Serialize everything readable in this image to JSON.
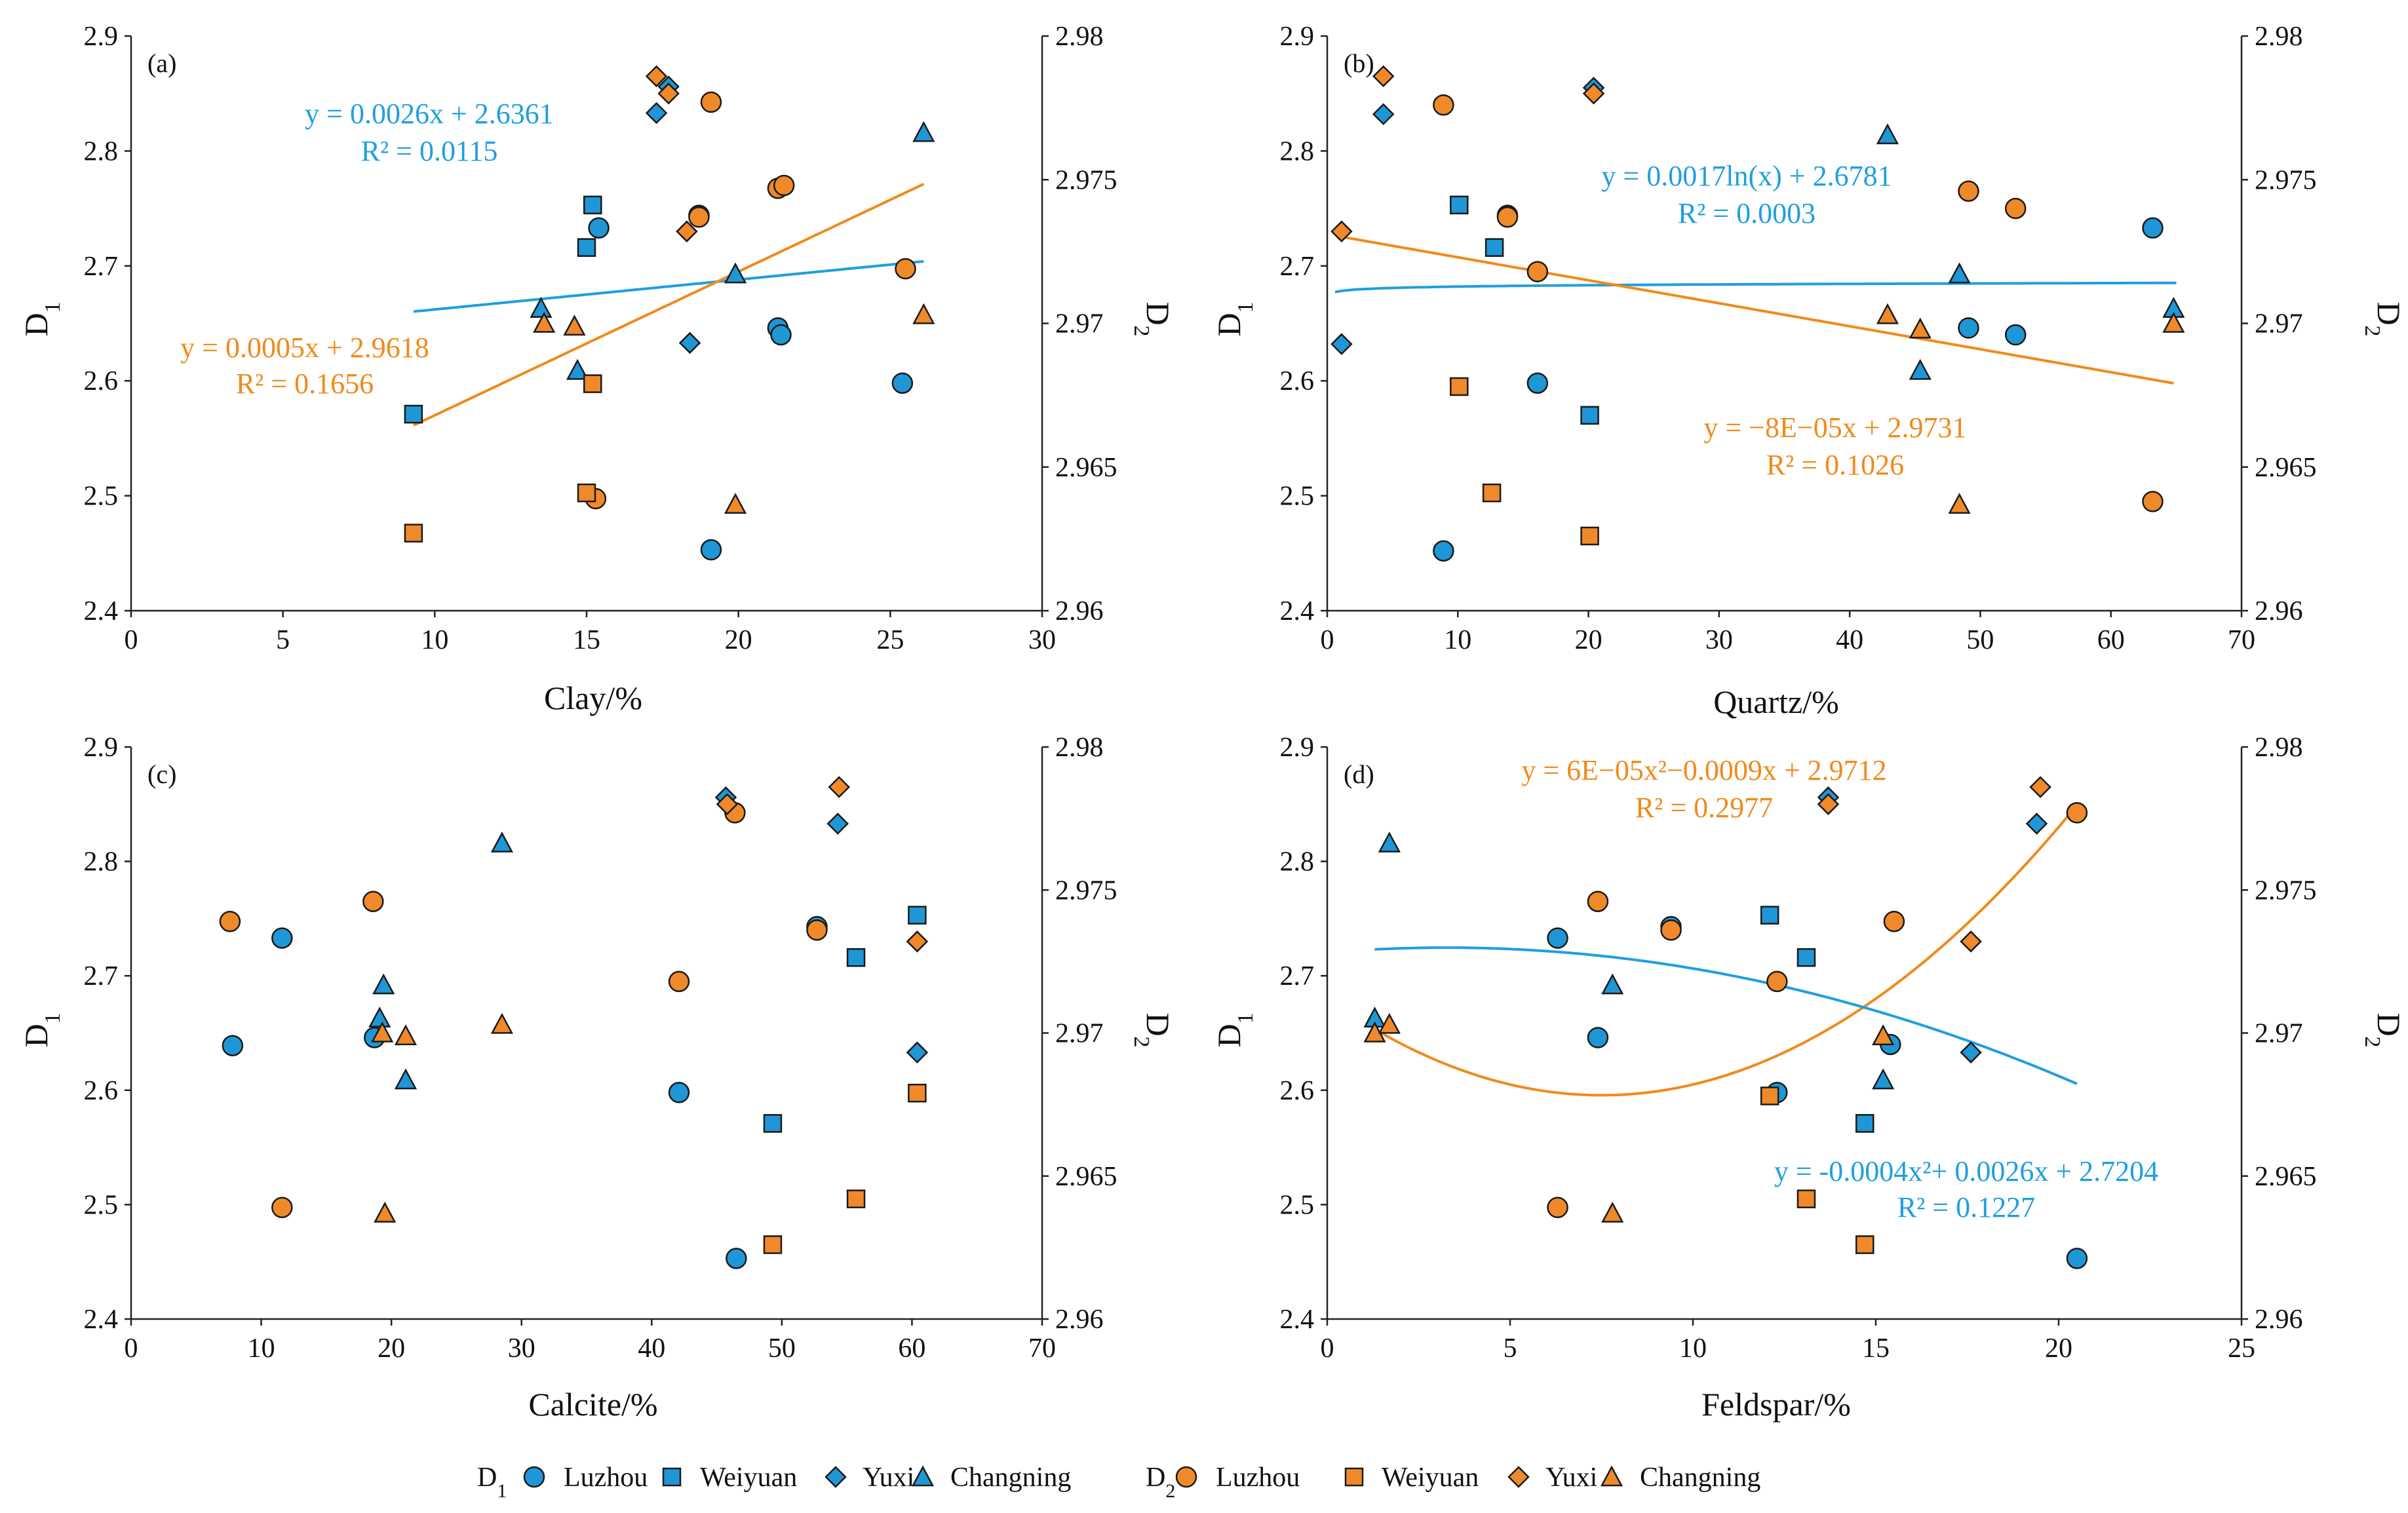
{
  "colors": {
    "d1": "#1f96d6",
    "d2": "#f0892a",
    "d1_line": "#1f9fe0",
    "d2_line": "#f08a1c",
    "axis": "#222222",
    "background": "#ffffff"
  },
  "legend": {
    "entries": [
      {
        "group": "D1",
        "group_main": "D",
        "group_sub": "1",
        "label": "Luzhou",
        "marker": "circle",
        "color": "#1f96d6"
      },
      {
        "group": "",
        "label": "Weiyuan",
        "marker": "square",
        "color": "#1f96d6"
      },
      {
        "group": "",
        "label": "Yuxi",
        "marker": "diamond",
        "color": "#1f96d6"
      },
      {
        "group": "",
        "label": "Changning",
        "marker": "triangle",
        "color": "#1f96d6"
      },
      {
        "group": "D2",
        "group_main": "D",
        "group_sub": "2",
        "label": "Luzhou",
        "marker": "circle",
        "color": "#f0892a"
      },
      {
        "group": "",
        "label": "Weiyuan",
        "marker": "square",
        "color": "#f0892a"
      },
      {
        "group": "",
        "label": "Yuxi",
        "marker": "diamond",
        "color": "#f0892a"
      },
      {
        "group": "",
        "label": "Changning",
        "marker": "triangle",
        "color": "#f0892a"
      }
    ]
  },
  "chart_data": [
    {
      "type": "scatter",
      "panel": "(a)",
      "xlabel": "Clay/%",
      "ylabel_left": "D1",
      "ylabel_left_main": "D",
      "ylabel_left_sub": "1",
      "ylabel_right": "D2",
      "ylabel_right_main": "D",
      "ylabel_right_sub": "2",
      "xlim": [
        0,
        30
      ],
      "xticks": [
        0,
        5,
        10,
        15,
        20,
        25,
        30
      ],
      "ylim_left": [
        2.4,
        2.9
      ],
      "yticks_left": [
        "2.4",
        "2.5",
        "2.6",
        "2.7",
        "2.8",
        "2.9"
      ],
      "ylim_right": [
        2.96,
        2.98
      ],
      "yticks_right": [
        "2.96",
        "2.965",
        "2.97",
        "2.975",
        "2.98"
      ],
      "series": [
        {
          "name": "D1 Luzhou",
          "axis": "left",
          "marker": "circle",
          "points": [
            [
              15.4,
              2.733
            ],
            [
              18.7,
              2.744
            ],
            [
              19.1,
              2.453
            ],
            [
              21.3,
              2.646
            ],
            [
              21.4,
              2.64
            ],
            [
              25.4,
              2.598
            ]
          ]
        },
        {
          "name": "D1 Weiyuan",
          "axis": "left",
          "marker": "square",
          "points": [
            [
              9.3,
              2.571
            ],
            [
              15.0,
              2.716
            ],
            [
              15.2,
              2.753
            ]
          ]
        },
        {
          "name": "D1 Yuxi",
          "axis": "left",
          "marker": "diamond",
          "points": [
            [
              17.3,
              2.833
            ],
            [
              17.7,
              2.856
            ],
            [
              18.4,
              2.633
            ]
          ]
        },
        {
          "name": "D1 Changning",
          "axis": "left",
          "marker": "triangle",
          "points": [
            [
              13.5,
              2.663
            ],
            [
              14.7,
              2.609
            ],
            [
              19.9,
              2.693
            ],
            [
              26.1,
              2.816
            ]
          ]
        },
        {
          "name": "D2 Luzhou",
          "axis": "right",
          "marker": "circle",
          "points": [
            [
              15.3,
              2.9639
            ],
            [
              18.7,
              2.9737
            ],
            [
              19.1,
              2.9777
            ],
            [
              21.3,
              2.9747
            ],
            [
              21.5,
              2.9748
            ],
            [
              25.5,
              2.9719
            ]
          ]
        },
        {
          "name": "D2 Weiyuan",
          "axis": "right",
          "marker": "square",
          "points": [
            [
              9.3,
              2.9627
            ],
            [
              15.0,
              2.9641
            ],
            [
              15.2,
              2.9679
            ]
          ]
        },
        {
          "name": "D2 Yuxi",
          "axis": "right",
          "marker": "diamond",
          "points": [
            [
              17.3,
              2.9786
            ],
            [
              17.7,
              2.978
            ],
            [
              18.3,
              2.9732
            ]
          ]
        },
        {
          "name": "D2 Changning",
          "axis": "right",
          "marker": "triangle",
          "points": [
            [
              13.6,
              2.97
            ],
            [
              14.6,
              2.9699
            ],
            [
              19.9,
              2.9637
            ],
            [
              26.1,
              2.9703
            ]
          ]
        }
      ],
      "fits": [
        {
          "series": "D1",
          "axis": "left",
          "kind": "linear",
          "coef": [
            2.6361,
            0.0026
          ],
          "x_range": [
            9.3,
            26.1
          ],
          "equation": "y = 0.0026x + 2.6361",
          "r2": "R² = 0.0115"
        },
        {
          "series": "D2",
          "axis": "right",
          "kind": "linear",
          "coef": [
            2.9618,
            0.0005
          ],
          "x_range": [
            9.3,
            26.1
          ],
          "equation": "y = 0.0005x + 2.9618",
          "r2": "R² = 0.1656"
        }
      ]
    },
    {
      "type": "scatter",
      "panel": "(b)",
      "xlabel": "Quartz/%",
      "ylabel_left": "D1",
      "ylabel_left_main": "D",
      "ylabel_left_sub": "1",
      "ylabel_right": "D2",
      "ylabel_right_main": "D",
      "ylabel_right_sub": "2",
      "xlim": [
        0,
        70
      ],
      "xticks": [
        0,
        10,
        20,
        30,
        40,
        50,
        60,
        70
      ],
      "ylim_left": [
        2.4,
        2.9
      ],
      "yticks_left": [
        "2.4",
        "2.5",
        "2.6",
        "2.7",
        "2.8",
        "2.9"
      ],
      "ylim_right": [
        2.96,
        2.98
      ],
      "yticks_right": [
        "2.96",
        "2.965",
        "2.97",
        "2.975",
        "2.98"
      ],
      "series": [
        {
          "name": "D1 Luzhou",
          "axis": "left",
          "marker": "circle",
          "points": [
            [
              8.9,
              2.452
            ],
            [
              13.8,
              2.744
            ],
            [
              16.1,
              2.598
            ],
            [
              49.1,
              2.646
            ],
            [
              52.7,
              2.64
            ],
            [
              63.2,
              2.733
            ]
          ]
        },
        {
          "name": "D1 Weiyuan",
          "axis": "left",
          "marker": "square",
          "points": [
            [
              10.1,
              2.753
            ],
            [
              12.8,
              2.716
            ],
            [
              20.1,
              2.57
            ]
          ]
        },
        {
          "name": "D1 Yuxi",
          "axis": "left",
          "marker": "diamond",
          "points": [
            [
              1.1,
              2.632
            ],
            [
              4.3,
              2.832
            ],
            [
              20.4,
              2.855
            ]
          ]
        },
        {
          "name": "D1 Changning",
          "axis": "left",
          "marker": "triangle",
          "points": [
            [
              42.9,
              2.814
            ],
            [
              45.4,
              2.609
            ],
            [
              48.4,
              2.693
            ],
            [
              64.8,
              2.663
            ]
          ]
        },
        {
          "name": "D2 Luzhou",
          "axis": "right",
          "marker": "circle",
          "points": [
            [
              8.9,
              2.9776
            ],
            [
              13.8,
              2.9737
            ],
            [
              16.1,
              2.9718
            ],
            [
              49.1,
              2.9746
            ],
            [
              52.7,
              2.974
            ],
            [
              63.2,
              2.9638
            ]
          ]
        },
        {
          "name": "D2 Weiyuan",
          "axis": "right",
          "marker": "square",
          "points": [
            [
              10.1,
              2.9678
            ],
            [
              12.6,
              2.9641
            ],
            [
              20.1,
              2.9626
            ]
          ]
        },
        {
          "name": "D2 Yuxi",
          "axis": "right",
          "marker": "diamond",
          "points": [
            [
              1.1,
              2.9732
            ],
            [
              4.3,
              2.9786
            ],
            [
              20.4,
              2.978
            ]
          ]
        },
        {
          "name": "D2 Changning",
          "axis": "right",
          "marker": "triangle",
          "points": [
            [
              42.9,
              2.9703
            ],
            [
              45.4,
              2.9698
            ],
            [
              48.4,
              2.9637
            ],
            [
              64.8,
              2.97
            ]
          ]
        }
      ],
      "fits": [
        {
          "series": "D1",
          "axis": "left",
          "kind": "log",
          "coef": [
            2.6781,
            0.0017
          ],
          "x_range": [
            0.6,
            65
          ],
          "equation": "y = 0.0017ln(x) + 2.6781",
          "r2": "R² = 0.0003"
        },
        {
          "series": "D2",
          "axis": "right",
          "kind": "linear",
          "coef": [
            2.9731,
            -8e-05
          ],
          "x_range": [
            1.1,
            64.8
          ],
          "equation": "y = −8E−05x + 2.9731",
          "r2": "R² = 0.1026"
        }
      ]
    },
    {
      "type": "scatter",
      "panel": "(c)",
      "xlabel": "Calcite/%",
      "ylabel_left": "D1",
      "ylabel_left_main": "D",
      "ylabel_left_sub": "1",
      "ylabel_right": "D2",
      "ylabel_right_main": "D",
      "ylabel_right_sub": "2",
      "xlim": [
        0,
        70
      ],
      "xticks": [
        0,
        10,
        20,
        30,
        40,
        50,
        60,
        70
      ],
      "ylim_left": [
        2.4,
        2.9
      ],
      "yticks_left": [
        "2.4",
        "2.5",
        "2.6",
        "2.7",
        "2.8",
        "2.9"
      ],
      "ylim_right": [
        2.96,
        2.98
      ],
      "yticks_right": [
        "2.96",
        "2.965",
        "2.97",
        "2.975",
        "2.98"
      ],
      "series": [
        {
          "name": "D1 Luzhou",
          "axis": "left",
          "marker": "circle",
          "points": [
            [
              7.8,
              2.639
            ],
            [
              11.6,
              2.733
            ],
            [
              18.7,
              2.646
            ],
            [
              42.1,
              2.598
            ],
            [
              46.5,
              2.453
            ],
            [
              52.7,
              2.743
            ]
          ]
        },
        {
          "name": "D1 Weiyuan",
          "axis": "left",
          "marker": "square",
          "points": [
            [
              49.3,
              2.571
            ],
            [
              55.7,
              2.716
            ],
            [
              60.4,
              2.753
            ]
          ]
        },
        {
          "name": "D1 Yuxi",
          "axis": "left",
          "marker": "diamond",
          "points": [
            [
              45.7,
              2.856
            ],
            [
              54.3,
              2.833
            ],
            [
              60.4,
              2.633
            ]
          ]
        },
        {
          "name": "D1 Changning",
          "axis": "left",
          "marker": "triangle",
          "points": [
            [
              19.1,
              2.663
            ],
            [
              19.4,
              2.692
            ],
            [
              21.1,
              2.609
            ],
            [
              28.5,
              2.816
            ]
          ]
        },
        {
          "name": "D2 Luzhou",
          "axis": "right",
          "marker": "circle",
          "points": [
            [
              7.6,
              2.9739
            ],
            [
              11.6,
              2.9639
            ],
            [
              18.6,
              2.9746
            ],
            [
              42.1,
              2.9718
            ],
            [
              46.4,
              2.9777
            ],
            [
              52.7,
              2.9736
            ]
          ]
        },
        {
          "name": "D2 Weiyuan",
          "axis": "right",
          "marker": "square",
          "points": [
            [
              49.3,
              2.9626
            ],
            [
              55.7,
              2.9642
            ],
            [
              60.4,
              2.9679
            ]
          ]
        },
        {
          "name": "D2 Yuxi",
          "axis": "right",
          "marker": "diamond",
          "points": [
            [
              45.8,
              2.978
            ],
            [
              54.4,
              2.9786
            ],
            [
              60.4,
              2.9732
            ]
          ]
        },
        {
          "name": "D2 Changning",
          "axis": "right",
          "marker": "triangle",
          "points": [
            [
              19.3,
              2.97
            ],
            [
              19.5,
              2.9637
            ],
            [
              21.1,
              2.9699
            ],
            [
              28.5,
              2.9703
            ]
          ]
        }
      ],
      "fits": []
    },
    {
      "type": "scatter",
      "panel": "(d)",
      "xlabel": "Feldspar/%",
      "ylabel_left": "D1",
      "ylabel_left_main": "D",
      "ylabel_left_sub": "1",
      "ylabel_right": "D2",
      "ylabel_right_main": "D",
      "ylabel_right_sub": "2",
      "xlim": [
        0,
        25
      ],
      "xticks": [
        0,
        5,
        10,
        15,
        20,
        25
      ],
      "ylim_left": [
        2.4,
        2.9
      ],
      "yticks_left": [
        "2.4",
        "2.5",
        "2.6",
        "2.7",
        "2.8",
        "2.9"
      ],
      "ylim_right": [
        2.96,
        2.98
      ],
      "yticks_right": [
        "2.96",
        "2.965",
        "2.97",
        "2.975",
        "2.98"
      ],
      "series": [
        {
          "name": "D1 Luzhou",
          "axis": "left",
          "marker": "circle",
          "points": [
            [
              6.3,
              2.733
            ],
            [
              7.4,
              2.646
            ],
            [
              9.4,
              2.743
            ],
            [
              12.3,
              2.598
            ],
            [
              15.4,
              2.64
            ],
            [
              20.5,
              2.453
            ]
          ]
        },
        {
          "name": "D1 Weiyuan",
          "axis": "left",
          "marker": "square",
          "points": [
            [
              12.1,
              2.753
            ],
            [
              13.1,
              2.716
            ],
            [
              14.7,
              2.571
            ]
          ]
        },
        {
          "name": "D1 Yuxi",
          "axis": "left",
          "marker": "diamond",
          "points": [
            [
              13.7,
              2.856
            ],
            [
              17.6,
              2.633
            ],
            [
              19.4,
              2.833
            ]
          ]
        },
        {
          "name": "D1 Changning",
          "axis": "left",
          "marker": "triangle",
          "points": [
            [
              1.3,
              2.663
            ],
            [
              1.7,
              2.816
            ],
            [
              7.8,
              2.692
            ],
            [
              15.2,
              2.609
            ]
          ]
        },
        {
          "name": "D2 Luzhou",
          "axis": "right",
          "marker": "circle",
          "points": [
            [
              6.3,
              2.9639
            ],
            [
              7.4,
              2.9746
            ],
            [
              9.4,
              2.9736
            ],
            [
              12.3,
              2.9718
            ],
            [
              15.5,
              2.9739
            ],
            [
              20.5,
              2.9777
            ]
          ]
        },
        {
          "name": "D2 Weiyuan",
          "axis": "right",
          "marker": "square",
          "points": [
            [
              12.1,
              2.9678
            ],
            [
              13.1,
              2.9642
            ],
            [
              14.7,
              2.9626
            ]
          ]
        },
        {
          "name": "D2 Yuxi",
          "axis": "right",
          "marker": "diamond",
          "points": [
            [
              13.7,
              2.978
            ],
            [
              17.6,
              2.9732
            ],
            [
              19.5,
              2.9786
            ]
          ]
        },
        {
          "name": "D2 Changning",
          "axis": "right",
          "marker": "triangle",
          "points": [
            [
              1.3,
              2.97
            ],
            [
              1.7,
              2.9703
            ],
            [
              7.8,
              2.9637
            ],
            [
              15.2,
              2.9699
            ]
          ]
        }
      ],
      "fits": [
        {
          "series": "D2",
          "axis": "right",
          "kind": "poly2",
          "coef": [
            2.9712,
            -0.0009,
            6e-05
          ],
          "x_range": [
            1.3,
            20.5
          ],
          "equation": "y = 6E−05x²−0.0009x + 2.9712",
          "r2": "R² = 0.2977"
        },
        {
          "series": "D1",
          "axis": "left",
          "kind": "poly2",
          "coef": [
            2.7204,
            0.0026,
            -0.0004
          ],
          "x_range": [
            1.3,
            20.5
          ],
          "equation": "y = -0.0004x²+ 0.0026x + 2.7204",
          "r2": "R² = 0.1227"
        }
      ]
    }
  ]
}
